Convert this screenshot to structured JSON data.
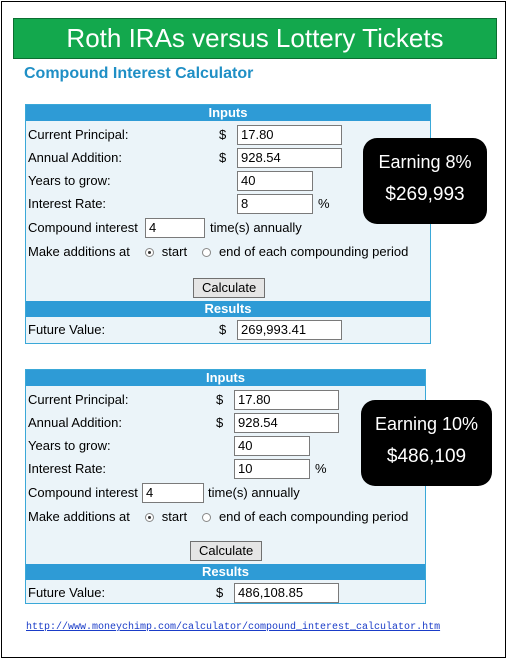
{
  "banner_title": "Roth IRAs versus Lottery Tickets",
  "subtitle": "Compound Interest Calculator",
  "labels": {
    "inputs": "Inputs",
    "results": "Results",
    "current_principal": "Current Principal:",
    "annual_addition": "Annual Addition:",
    "years_to_grow": "Years to grow:",
    "interest_rate": "Interest Rate:",
    "compound_interest": "Compound interest",
    "times_annually": "time(s) annually",
    "make_additions_at": "Make additions at",
    "start": "start",
    "end_of_period": "end of each compounding period",
    "calculate": "Calculate",
    "future_value": "Future Value:",
    "dollar": "$",
    "percent": "%"
  },
  "calc1": {
    "principal": "17.80",
    "annual_addition": "928.54",
    "years": "40",
    "rate": "8",
    "compound": "4",
    "future_value": "269,993.41"
  },
  "calc2": {
    "principal": "17.80",
    "annual_addition": "928.54",
    "years": "40",
    "rate": "10",
    "compound": "4",
    "future_value": "486,108.85"
  },
  "callout1": {
    "line1": "Earning 8%",
    "line2": "$269,993"
  },
  "callout2": {
    "line1": "Earning 10%",
    "line2": "$486,109"
  },
  "source_link": "http://www.moneychimp.com/calculator/compound_interest_calculator.htm",
  "colors": {
    "banner": "#13a84d",
    "header_bar": "#2e9bd6",
    "subtitle": "#1f8fc5",
    "panel_bg": "#ebf4f9"
  }
}
